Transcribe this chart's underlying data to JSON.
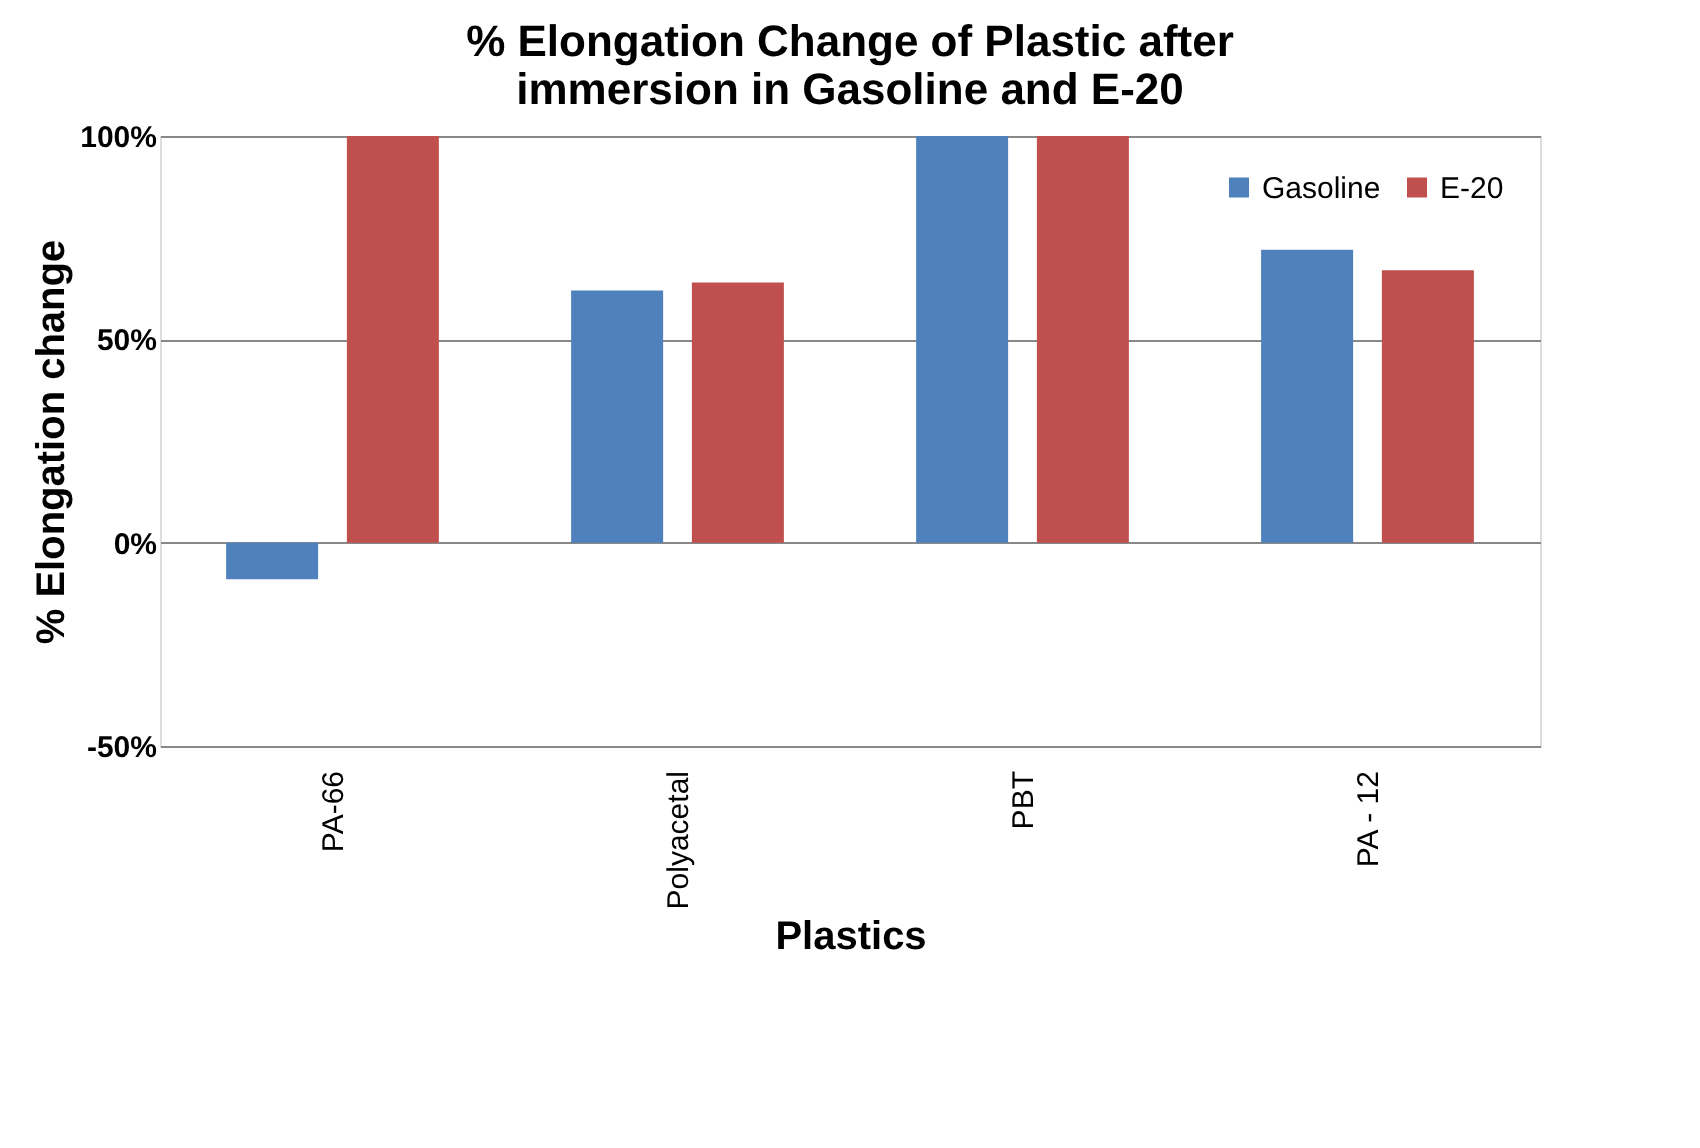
{
  "chart_data": {
    "type": "bar",
    "title": [
      "% Elongation Change of Plastic after",
      "immersion in Gasoline and E-20"
    ],
    "xlabel": "Plastics",
    "ylabel": "% Elongation change",
    "categories": [
      "PA-66",
      "Polyacetal",
      "PBT",
      "PA - 12"
    ],
    "series": [
      {
        "name": "Gasoline",
        "color": "#4f81bd",
        "values": [
          -9,
          62,
          100,
          72
        ]
      },
      {
        "name": "E-20",
        "color": "#c0504d",
        "values": [
          100,
          64,
          100,
          67
        ]
      }
    ],
    "ylim": [
      -50,
      100
    ],
    "yticks": [
      {
        "value": -50,
        "label": "-50%"
      },
      {
        "value": 0,
        "label": "0%"
      },
      {
        "value": 50,
        "label": "50%"
      },
      {
        "value": 100,
        "label": "100%"
      }
    ],
    "grid": "y",
    "legend": "top right"
  }
}
